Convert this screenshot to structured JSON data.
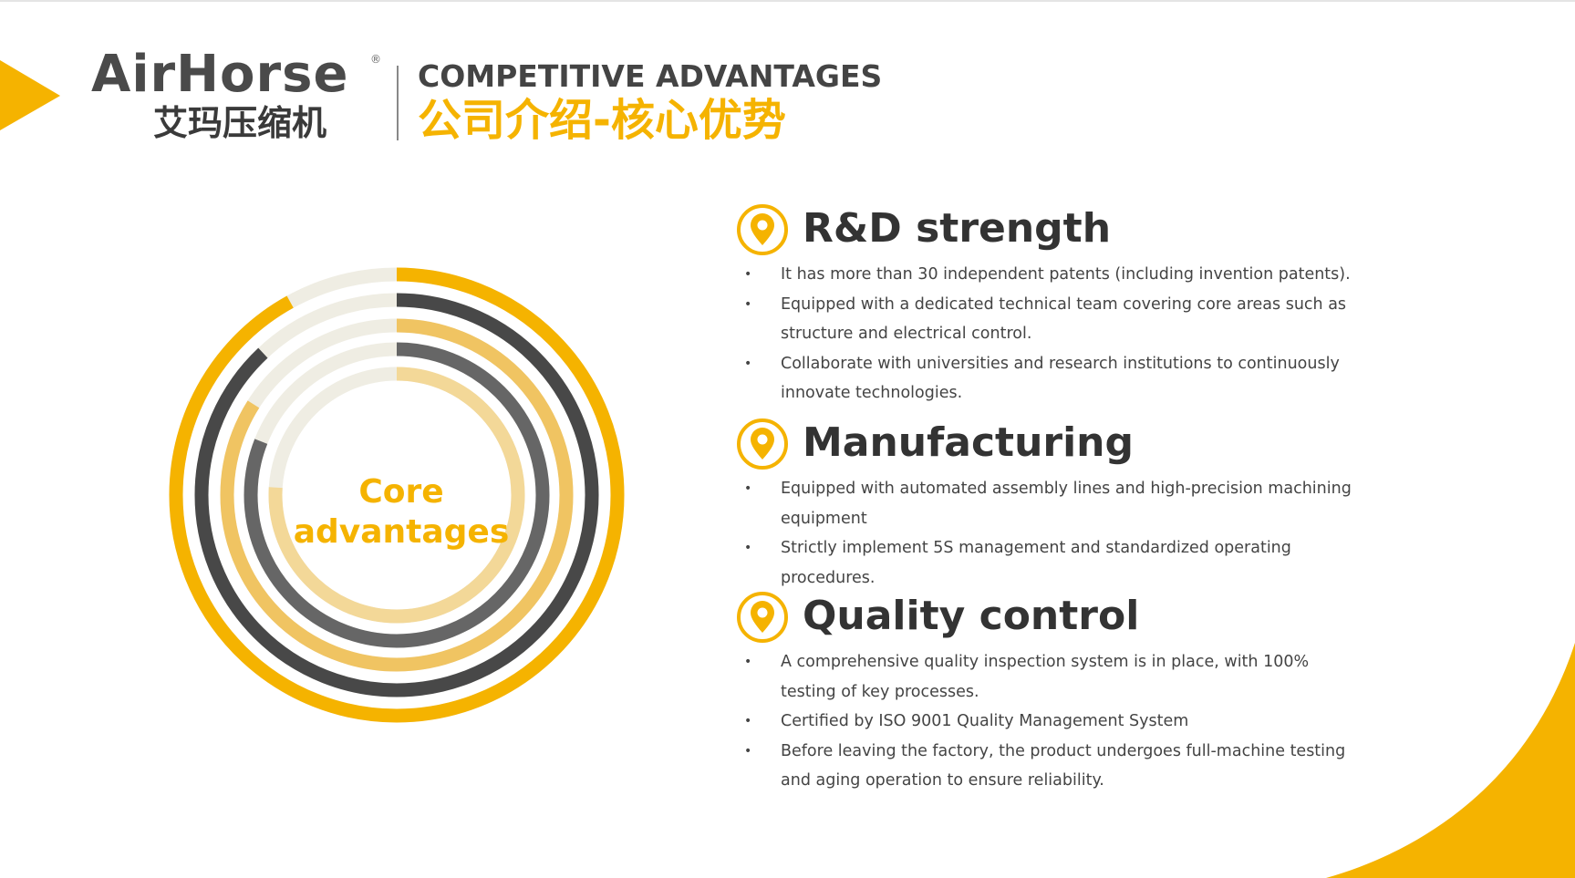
{
  "header": {
    "logo": {
      "brand": "AirHorse",
      "registered": "®",
      "brand_cn": "艾玛压缩机"
    },
    "title": "COMPETITIVE ADVANTAGES",
    "subtitle": "公司介绍-核心优势"
  },
  "diagram": {
    "center_label": [
      "Core",
      "advantages"
    ]
  },
  "sections": [
    {
      "title": "R&D strength",
      "bullets": [
        "It has more than 30 independent patents (including invention patents).",
        "Equipped with a dedicated technical team covering core areas such as structure and electrical control.",
        "Collaborate with universities and research institutions to continuously innovate technologies."
      ]
    },
    {
      "title": "Manufacturing",
      "bullets": [
        "Equipped with automated assembly lines and high-precision machining equipment",
        "Strictly implement 5S management and standardized operating procedures."
      ]
    },
    {
      "title": "Quality control",
      "bullets": [
        "A comprehensive quality inspection system is in place, with 100% testing of key processes.",
        "Certified by ISO 9001 Quality Management System",
        "Before leaving the factory, the product undergoes full-machine testing and aging operation to ensure reliability."
      ]
    }
  ]
}
